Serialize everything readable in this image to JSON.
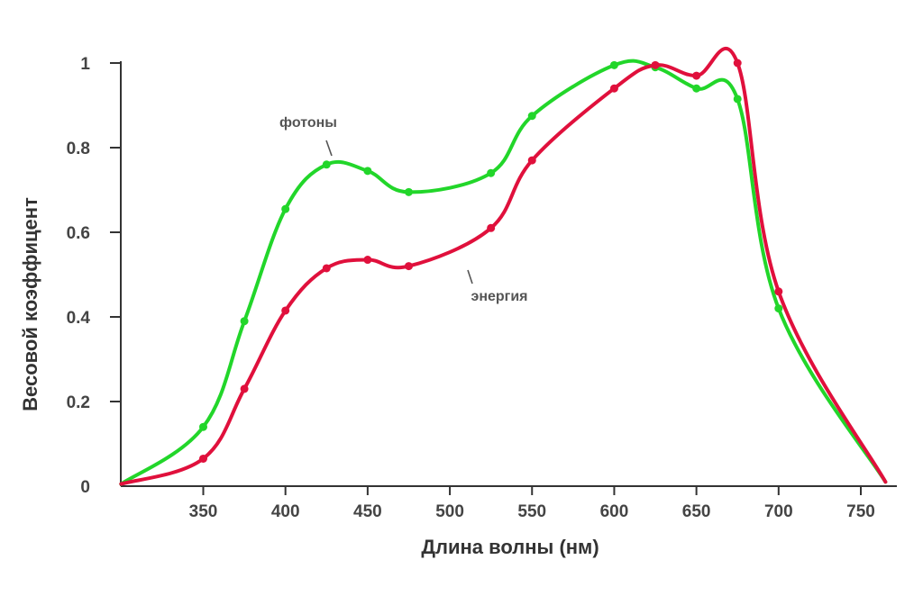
{
  "chart_data": {
    "type": "line",
    "xlabel": "Длина волны (нм)",
    "ylabel": "Весовой коэффицент",
    "xlim": [
      300,
      770
    ],
    "ylim": [
      0,
      1.0
    ],
    "x_ticks": [
      350,
      400,
      450,
      500,
      550,
      600,
      650,
      700,
      750
    ],
    "y_ticks": [
      0,
      0.2,
      0.4,
      0.6,
      0.8,
      1.0
    ],
    "y_tick_labels": [
      "0",
      "0.2",
      "0.4",
      "0.6",
      "0.8",
      "1"
    ],
    "grid": false,
    "series": [
      {
        "name": "фотоны",
        "color": "#22d62a",
        "x": [
          300,
          350,
          375,
          400,
          425,
          450,
          475,
          525,
          550,
          600,
          625,
          650,
          675,
          700,
          765
        ],
        "y": [
          0.005,
          0.14,
          0.39,
          0.655,
          0.76,
          0.745,
          0.695,
          0.74,
          0.875,
          0.995,
          0.99,
          0.94,
          0.915,
          0.42,
          0.01
        ]
      },
      {
        "name": "энергия",
        "color": "#e0103c",
        "x": [
          300,
          350,
          375,
          400,
          425,
          450,
          475,
          525,
          550,
          600,
          625,
          650,
          675,
          700,
          765
        ],
        "y": [
          0.005,
          0.065,
          0.23,
          0.415,
          0.515,
          0.535,
          0.52,
          0.61,
          0.77,
          0.94,
          0.995,
          0.97,
          1.0,
          0.46,
          0.01
        ]
      }
    ],
    "annotations": [
      {
        "text": "фотоны",
        "series": "фотоны"
      },
      {
        "text": "энергия",
        "series": "энергия"
      }
    ]
  }
}
